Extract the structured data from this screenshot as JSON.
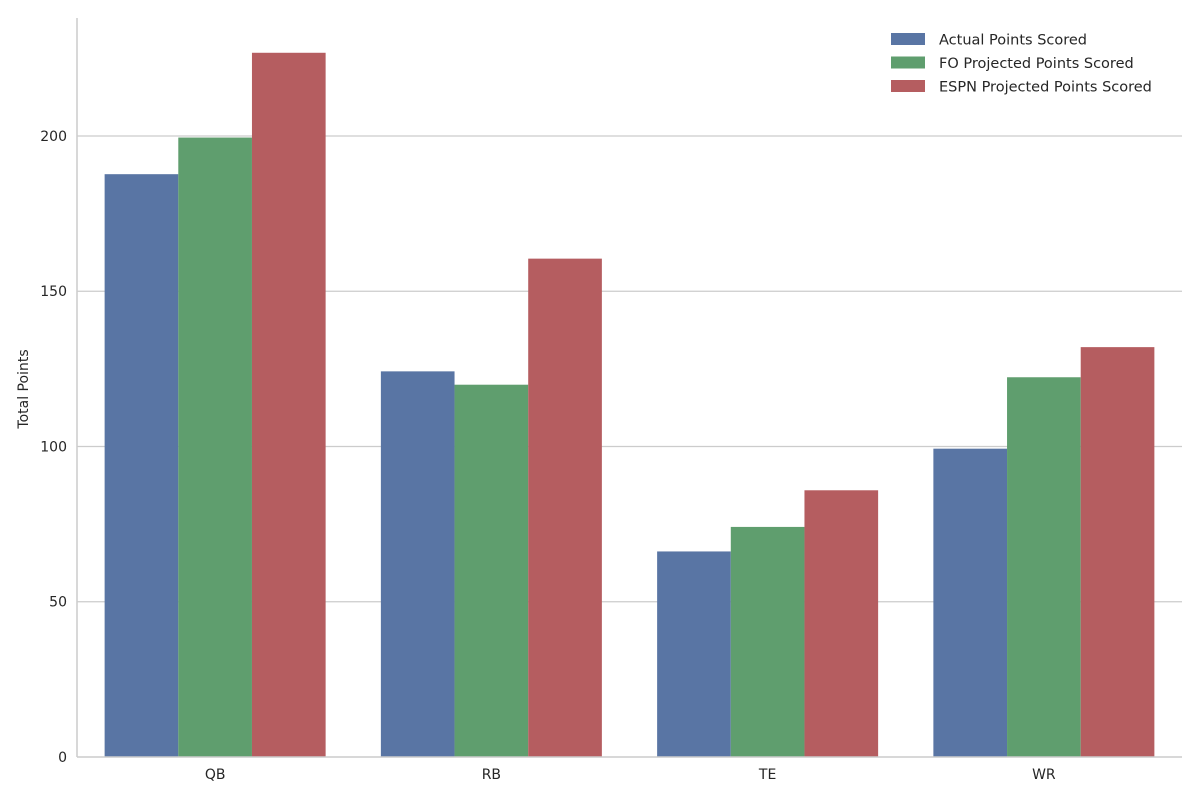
{
  "chart_data": {
    "type": "bar",
    "title": "",
    "xlabel": "",
    "ylabel": "Total Points",
    "categories": [
      "QB",
      "RB",
      "TE",
      "WR"
    ],
    "series": [
      {
        "name": "Actual Points Scored",
        "color": "#5975a4",
        "values": [
          187.7,
          124.2,
          66.2,
          99.3
        ]
      },
      {
        "name": "FO Projected Points Scored",
        "color": "#5f9e6e",
        "values": [
          199.5,
          119.9,
          74.1,
          122.3
        ]
      },
      {
        "name": "ESPN Projected Points Scored",
        "color": "#b55d60",
        "values": [
          226.8,
          160.5,
          85.9,
          132.0
        ]
      }
    ],
    "ylim": [
      0,
      238
    ],
    "yticks": [
      0,
      50,
      100,
      150,
      200
    ],
    "grid": "horizontal",
    "legend": "top-right"
  }
}
